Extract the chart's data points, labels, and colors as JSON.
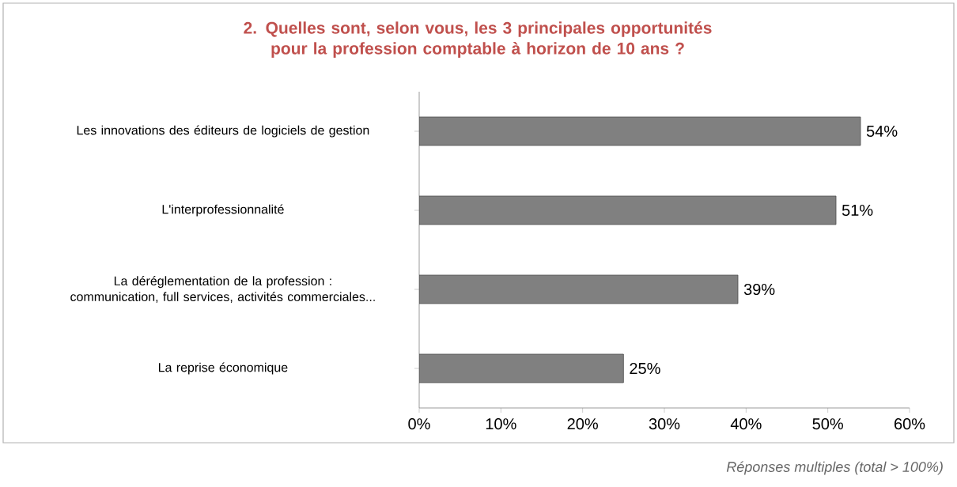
{
  "chart_data": {
    "type": "bar",
    "orientation": "horizontal",
    "title": "2. Quelles sont, selon vous, les 3 principales opportunités pour la profession comptable à horizon de 10 ans ?",
    "categories": [
      "Les innovations des éditeurs de logiciels de gestion",
      "L'interprofessionnalité",
      "La déréglementation de la profession : communication, full services, activités commerciales...",
      "La reprise économique"
    ],
    "values": [
      54,
      51,
      39,
      25
    ],
    "color": "#808080",
    "value_labels": [
      "54%",
      "51%",
      "39%",
      "25%"
    ],
    "xlim": [
      0,
      60
    ],
    "xticks": [
      {
        "value": 0,
        "label": "0%"
      },
      {
        "value": 10,
        "label": "10%"
      },
      {
        "value": 20,
        "label": "20%"
      },
      {
        "value": 30,
        "label": "30%"
      },
      {
        "value": 40,
        "label": "40%"
      },
      {
        "value": 50,
        "label": "50%"
      },
      {
        "value": 60,
        "label": "60%"
      }
    ],
    "grid": false,
    "annotations": [
      "Réponses multiples (total > 100%)"
    ]
  }
}
